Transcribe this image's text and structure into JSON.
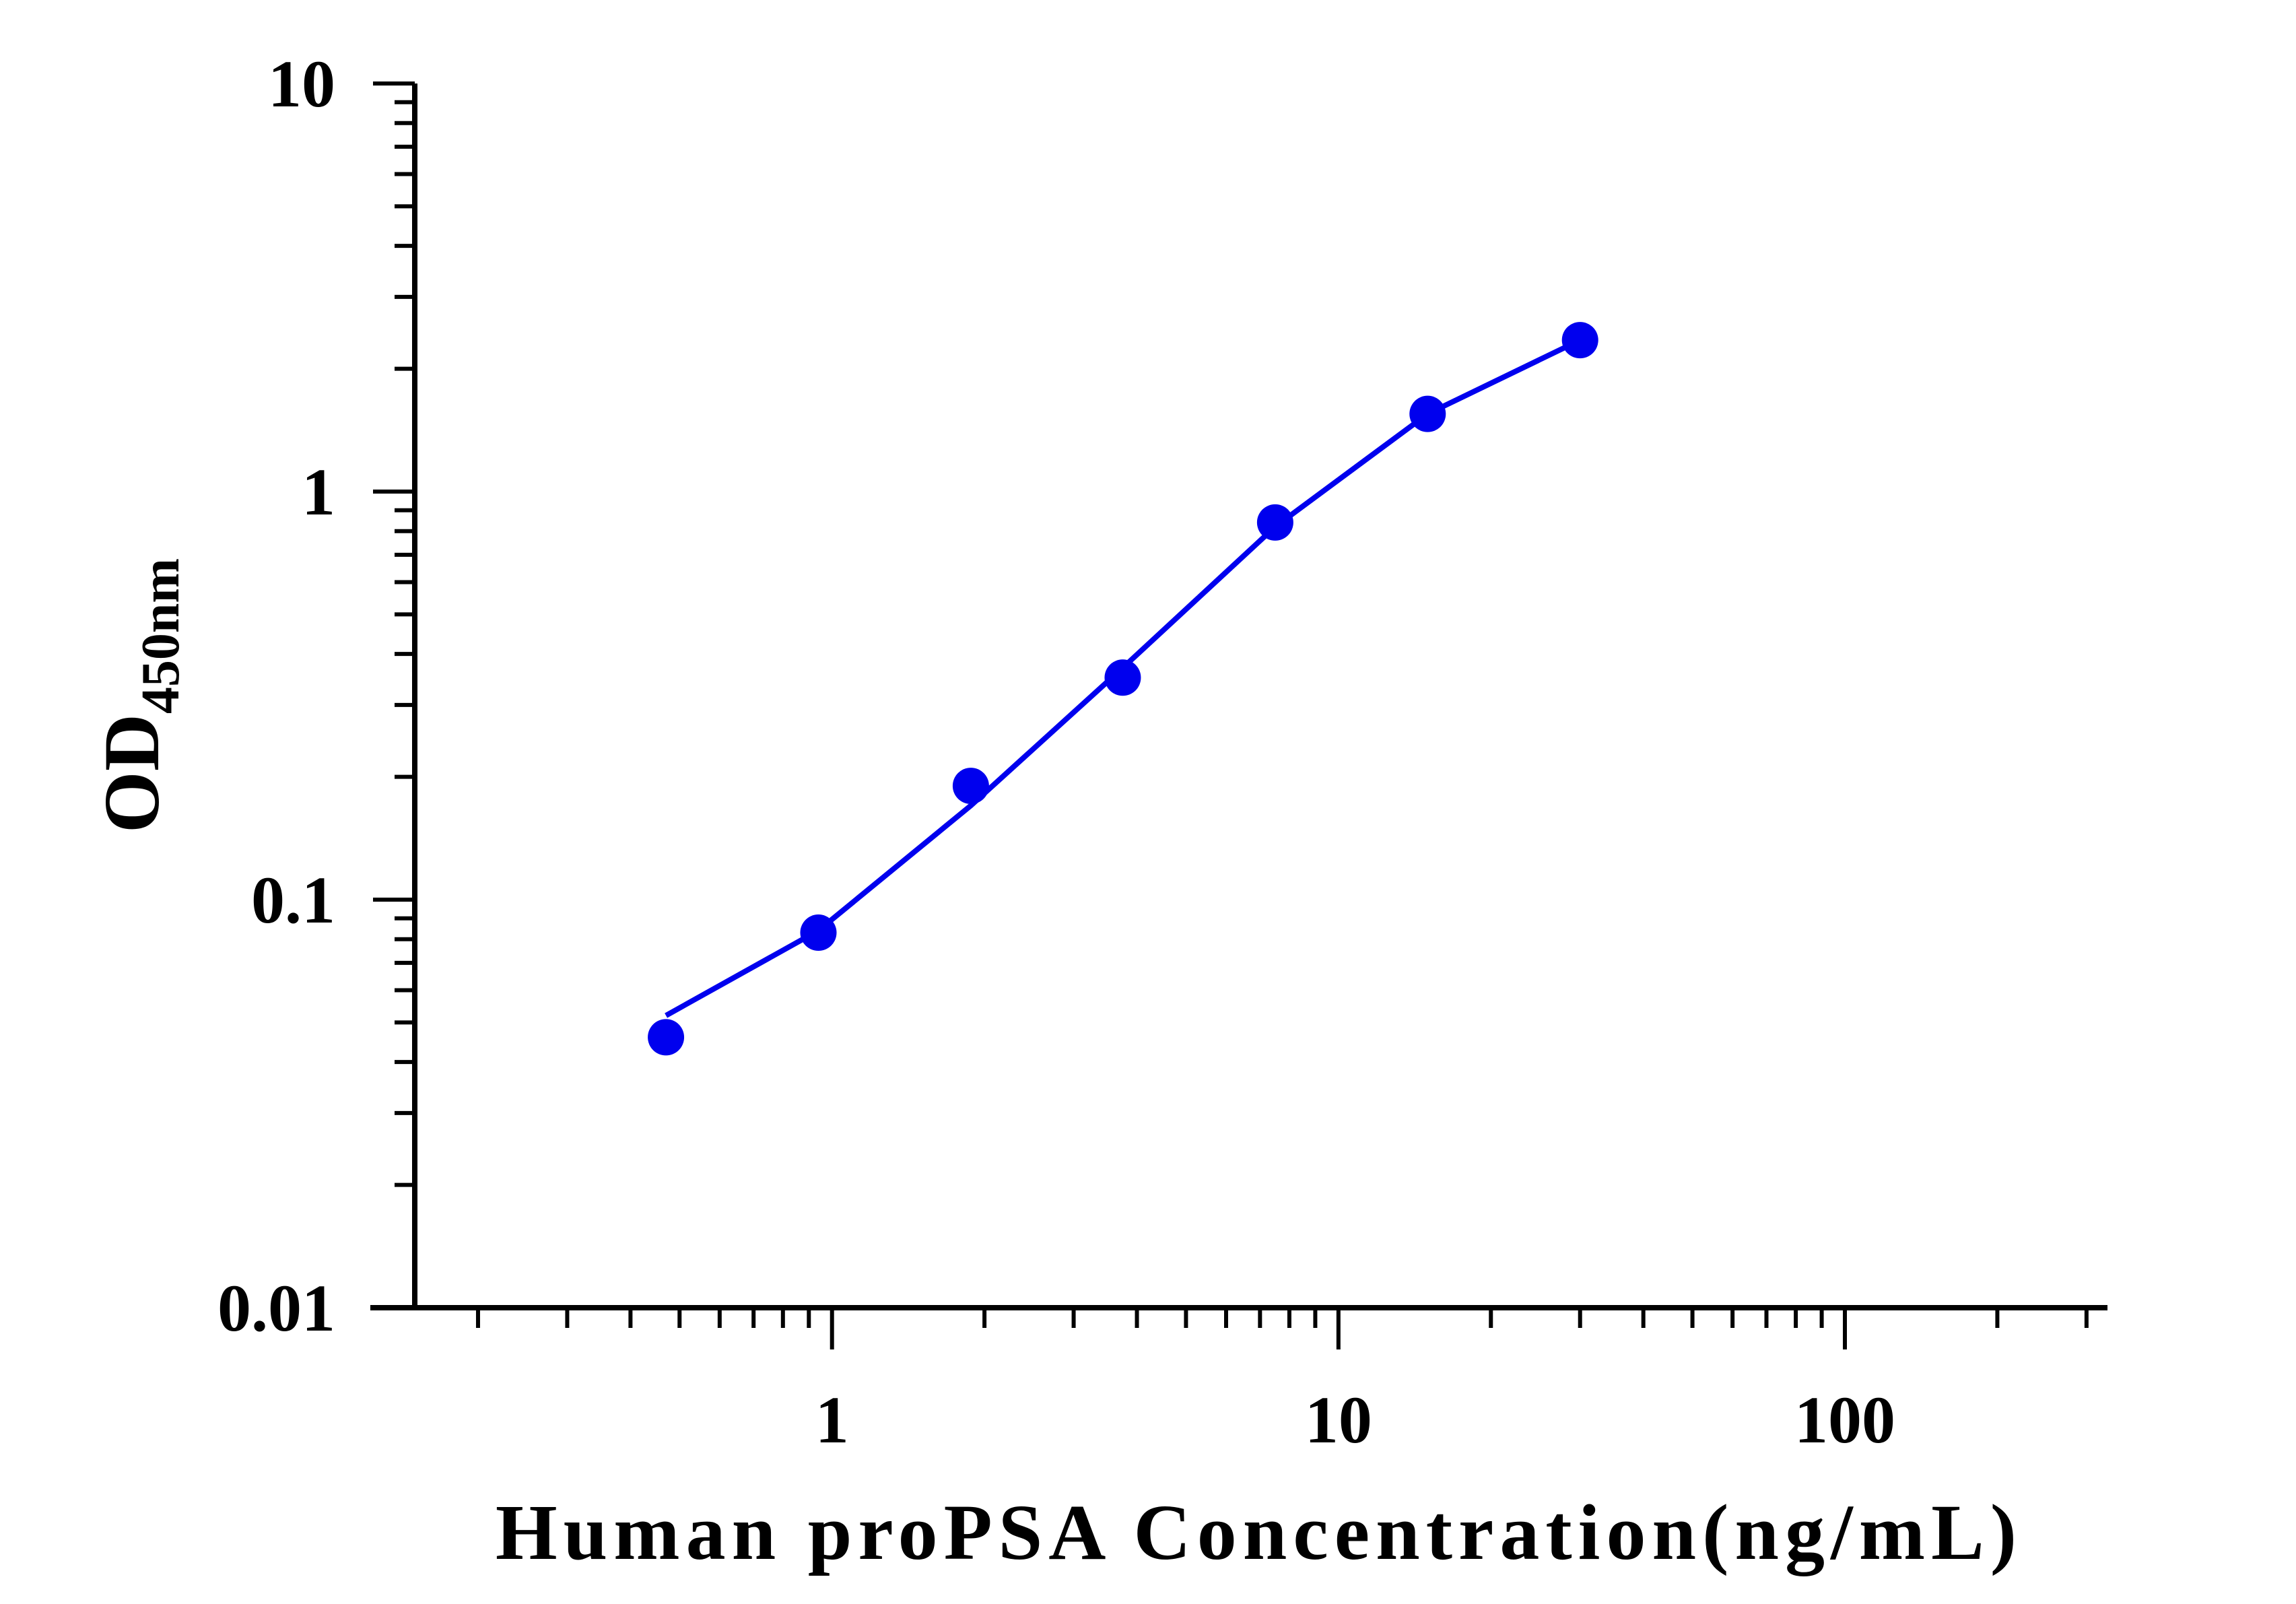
{
  "chart_data": {
    "type": "scatter",
    "title": "",
    "xlabel": "Human proPSA Concentration(ng/mL)",
    "ylabel_main": "OD",
    "ylabel_sub": "450nm",
    "x_scale": "log",
    "y_scale": "log",
    "xlim": [
      0.15,
      330
    ],
    "ylim": [
      0.01,
      10
    ],
    "x_ticks": [
      {
        "value": 1,
        "label": "1"
      },
      {
        "value": 10,
        "label": "10"
      },
      {
        "value": 100,
        "label": "100"
      }
    ],
    "y_ticks": [
      {
        "value": 0.01,
        "label": "0.01"
      },
      {
        "value": 0.1,
        "label": "0.1"
      },
      {
        "value": 1,
        "label": "1"
      },
      {
        "value": 10,
        "label": "10"
      }
    ],
    "grid": false,
    "legend": "none",
    "series": [
      {
        "color": "#0000ee",
        "points": [
          {
            "x": 0.47,
            "y": 0.046
          },
          {
            "x": 0.94,
            "y": 0.083
          },
          {
            "x": 1.88,
            "y": 0.19
          },
          {
            "x": 3.75,
            "y": 0.35
          },
          {
            "x": 7.5,
            "y": 0.84
          },
          {
            "x": 15,
            "y": 1.55
          },
          {
            "x": 30,
            "y": 2.35
          }
        ],
        "fit_curve": [
          {
            "x": 0.47,
            "y": 0.052
          },
          {
            "x": 0.94,
            "y": 0.084
          },
          {
            "x": 1.88,
            "y": 0.17
          },
          {
            "x": 3.75,
            "y": 0.37
          },
          {
            "x": 7.5,
            "y": 0.82
          },
          {
            "x": 15,
            "y": 1.55
          },
          {
            "x": 30,
            "y": 2.35
          }
        ]
      }
    ]
  }
}
